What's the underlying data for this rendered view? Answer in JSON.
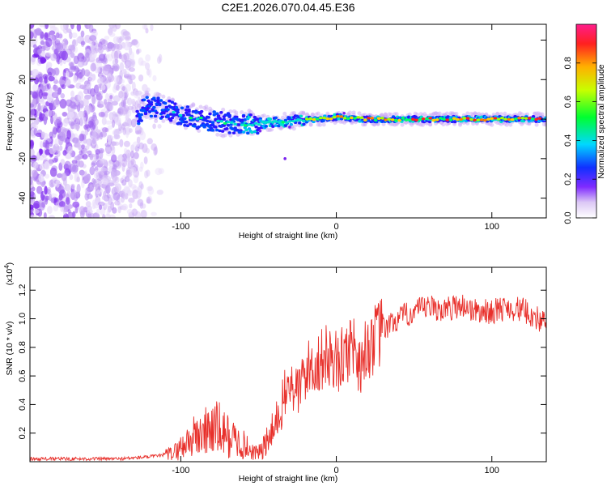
{
  "title": "C2E1.2026.070.04.45.E36",
  "chart_data": [
    {
      "type": "heatmap",
      "xlabel": "Height of straight line (km)",
      "ylabel": "Frequency (Hz)",
      "xlim": [
        -197,
        135
      ],
      "ylim": [
        -50,
        48
      ],
      "xticks": [
        -100,
        0,
        100
      ],
      "yticks": [
        -40,
        -20,
        0,
        20,
        40
      ],
      "colorbar": {
        "label": "Normalized spectral amplitude",
        "range": [
          0.0,
          1.0
        ],
        "ticks": [
          0.0,
          0.2,
          0.4,
          0.6,
          0.8
        ]
      },
      "features": {
        "noise_region_x": [
          -197,
          -110
        ],
        "signal_track": [
          {
            "x": -125,
            "y": 7
          },
          {
            "x": -110,
            "y": 5
          },
          {
            "x": -100,
            "y": 2
          },
          {
            "x": -80,
            "y": -1
          },
          {
            "x": -60,
            "y": -3
          },
          {
            "x": -45,
            "y": -2
          },
          {
            "x": -30,
            "y": -1
          },
          {
            "x": -10,
            "y": 0
          },
          {
            "x": 0,
            "y": 1
          },
          {
            "x": 20,
            "y": 0
          },
          {
            "x": 60,
            "y": 0
          },
          {
            "x": 100,
            "y": 0
          },
          {
            "x": 135,
            "y": 0
          }
        ]
      }
    },
    {
      "type": "line",
      "xlabel": "Height of straight line (km)",
      "ylabel": "SNR (10 * v/v)",
      "yscale_label": "(x10^4)",
      "yscale_base": "(x10",
      "yscale_exp": "4",
      "yscale_close": ")",
      "xlim": [
        -197,
        135
      ],
      "ylim": [
        0.0,
        1.36
      ],
      "xticks": [
        -100,
        0,
        100
      ],
      "yticks": [
        0.2,
        0.4,
        0.6,
        0.8,
        1.0,
        1.2
      ],
      "series": [
        {
          "name": "SNR",
          "color": "#e8302b",
          "x": [
            -197,
            -180,
            -160,
            -140,
            -125,
            -115,
            -105,
            -100,
            -95,
            -90,
            -85,
            -80,
            -75,
            -70,
            -65,
            -60,
            -55,
            -50,
            -45,
            -40,
            -35,
            -30,
            -25,
            -20,
            -15,
            -10,
            -5,
            0,
            5,
            10,
            15,
            20,
            30,
            40,
            50,
            60,
            70,
            80,
            90,
            100,
            110,
            120,
            130,
            135
          ],
          "y": [
            0.02,
            0.02,
            0.02,
            0.02,
            0.03,
            0.04,
            0.06,
            0.1,
            0.15,
            0.18,
            0.2,
            0.24,
            0.22,
            0.18,
            0.15,
            0.12,
            0.08,
            0.06,
            0.12,
            0.22,
            0.4,
            0.55,
            0.48,
            0.62,
            0.68,
            0.7,
            0.75,
            0.7,
            0.72,
            0.85,
            0.68,
            0.8,
            0.92,
            1.0,
            1.05,
            1.08,
            1.06,
            1.1,
            1.05,
            1.05,
            1.08,
            1.06,
            1.0,
            0.95
          ]
        }
      ]
    }
  ]
}
